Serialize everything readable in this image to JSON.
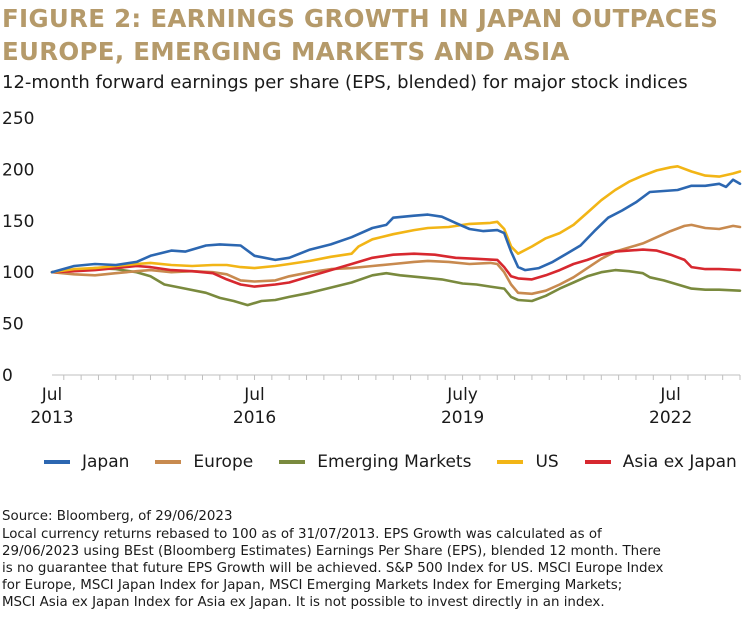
{
  "figure": {
    "title_line1": "FIGURE 2: EARNINGS GROWTH IN JAPAN OUTPACES",
    "title_line2": "EUROPE, EMERGING MARKETS AND ASIA",
    "subtitle": "12-month forward earnings per share (EPS, blended) for major stock indices",
    "source": "Source: Bloomberg, of 29/06/2023",
    "notes": [
      "Local currency returns rebased to 100 as of 31/07/2013. EPS Growth was calculated as of",
      "29/06/2023 using BEst (Bloomberg Estimates) Earnings Per Share (EPS), blended 12 month. There",
      "is no guarantee that future EPS Growth will be achieved. S&P 500 Index for US. MSCI Europe Index",
      "for Europe, MSCI Japan Index for Japan, MSCI Emerging Markets Index for Emerging Markets;",
      "MSCI Asia ex Japan Index for Asia ex Japan. It is not possible to invest directly in an index."
    ]
  },
  "chart_data": {
    "type": "line",
    "ylim": [
      0,
      250
    ],
    "yticks": [
      0,
      50,
      100,
      150,
      200,
      250
    ],
    "xlim": [
      2013.58,
      2023.5
    ],
    "xticks": [
      {
        "x": 2013.58,
        "line1": "Jul",
        "line2": "2013"
      },
      {
        "x": 2016.5,
        "line1": "Jul",
        "line2": "2016"
      },
      {
        "x": 2019.5,
        "line1": "July",
        "line2": "2019"
      },
      {
        "x": 2022.5,
        "line1": "Jul",
        "line2": "2022"
      }
    ],
    "grid": false,
    "legend_position": "bottom",
    "series": [
      {
        "name": "Japan",
        "color": "#2c67b1",
        "points": [
          [
            2013.58,
            100
          ],
          [
            2013.9,
            106
          ],
          [
            2014.2,
            108
          ],
          [
            2014.5,
            107
          ],
          [
            2014.8,
            110
          ],
          [
            2015.0,
            116
          ],
          [
            2015.3,
            121
          ],
          [
            2015.5,
            120
          ],
          [
            2015.8,
            126
          ],
          [
            2016.0,
            127
          ],
          [
            2016.3,
            126
          ],
          [
            2016.5,
            116
          ],
          [
            2016.8,
            112
          ],
          [
            2017.0,
            114
          ],
          [
            2017.3,
            122
          ],
          [
            2017.6,
            127
          ],
          [
            2017.9,
            134
          ],
          [
            2018.2,
            143
          ],
          [
            2018.4,
            146
          ],
          [
            2018.5,
            153
          ],
          [
            2018.8,
            155
          ],
          [
            2019.0,
            156
          ],
          [
            2019.2,
            154
          ],
          [
            2019.4,
            148
          ],
          [
            2019.6,
            142
          ],
          [
            2019.8,
            140
          ],
          [
            2020.0,
            141
          ],
          [
            2020.1,
            138
          ],
          [
            2020.2,
            120
          ],
          [
            2020.3,
            105
          ],
          [
            2020.4,
            102
          ],
          [
            2020.6,
            104
          ],
          [
            2020.8,
            110
          ],
          [
            2021.0,
            118
          ],
          [
            2021.2,
            126
          ],
          [
            2021.4,
            140
          ],
          [
            2021.6,
            153
          ],
          [
            2021.8,
            160
          ],
          [
            2022.0,
            168
          ],
          [
            2022.2,
            178
          ],
          [
            2022.4,
            179
          ],
          [
            2022.6,
            180
          ],
          [
            2022.8,
            184
          ],
          [
            2023.0,
            184
          ],
          [
            2023.2,
            186
          ],
          [
            2023.3,
            183
          ],
          [
            2023.4,
            190
          ],
          [
            2023.5,
            186
          ]
        ]
      },
      {
        "name": "Europe",
        "color": "#c88a4f",
        "points": [
          [
            2013.58,
            100
          ],
          [
            2013.9,
            98
          ],
          [
            2014.2,
            97
          ],
          [
            2014.5,
            99
          ],
          [
            2014.8,
            101
          ],
          [
            2015.0,
            102
          ],
          [
            2015.3,
            100
          ],
          [
            2015.6,
            101
          ],
          [
            2015.9,
            100
          ],
          [
            2016.1,
            98
          ],
          [
            2016.3,
            92
          ],
          [
            2016.5,
            91
          ],
          [
            2016.8,
            92
          ],
          [
            2017.0,
            96
          ],
          [
            2017.3,
            100
          ],
          [
            2017.6,
            103
          ],
          [
            2017.9,
            104
          ],
          [
            2018.2,
            106
          ],
          [
            2018.5,
            108
          ],
          [
            2018.8,
            110
          ],
          [
            2019.0,
            111
          ],
          [
            2019.3,
            110
          ],
          [
            2019.6,
            108
          ],
          [
            2019.9,
            109
          ],
          [
            2020.0,
            108
          ],
          [
            2020.1,
            100
          ],
          [
            2020.2,
            88
          ],
          [
            2020.3,
            80
          ],
          [
            2020.5,
            79
          ],
          [
            2020.7,
            82
          ],
          [
            2020.9,
            88
          ],
          [
            2021.1,
            95
          ],
          [
            2021.3,
            104
          ],
          [
            2021.5,
            113
          ],
          [
            2021.7,
            120
          ],
          [
            2021.9,
            124
          ],
          [
            2022.1,
            128
          ],
          [
            2022.3,
            134
          ],
          [
            2022.5,
            140
          ],
          [
            2022.7,
            145
          ],
          [
            2022.8,
            146
          ],
          [
            2023.0,
            143
          ],
          [
            2023.2,
            142
          ],
          [
            2023.4,
            145
          ],
          [
            2023.5,
            144
          ]
        ]
      },
      {
        "name": "Emerging Markets",
        "color": "#7a8a3e",
        "points": [
          [
            2013.58,
            100
          ],
          [
            2013.9,
            102
          ],
          [
            2014.2,
            104
          ],
          [
            2014.5,
            103
          ],
          [
            2014.8,
            100
          ],
          [
            2015.0,
            96
          ],
          [
            2015.2,
            88
          ],
          [
            2015.5,
            84
          ],
          [
            2015.8,
            80
          ],
          [
            2016.0,
            75
          ],
          [
            2016.2,
            72
          ],
          [
            2016.4,
            68
          ],
          [
            2016.6,
            72
          ],
          [
            2016.8,
            73
          ],
          [
            2017.0,
            76
          ],
          [
            2017.3,
            80
          ],
          [
            2017.6,
            85
          ],
          [
            2017.9,
            90
          ],
          [
            2018.2,
            97
          ],
          [
            2018.4,
            99
          ],
          [
            2018.6,
            97
          ],
          [
            2018.9,
            95
          ],
          [
            2019.2,
            93
          ],
          [
            2019.5,
            89
          ],
          [
            2019.7,
            88
          ],
          [
            2019.9,
            86
          ],
          [
            2020.1,
            84
          ],
          [
            2020.2,
            76
          ],
          [
            2020.3,
            73
          ],
          [
            2020.5,
            72
          ],
          [
            2020.7,
            77
          ],
          [
            2020.9,
            84
          ],
          [
            2021.1,
            90
          ],
          [
            2021.3,
            96
          ],
          [
            2021.5,
            100
          ],
          [
            2021.7,
            102
          ],
          [
            2021.9,
            101
          ],
          [
            2022.1,
            99
          ],
          [
            2022.2,
            95
          ],
          [
            2022.4,
            92
          ],
          [
            2022.6,
            88
          ],
          [
            2022.8,
            84
          ],
          [
            2023.0,
            83
          ],
          [
            2023.2,
            83
          ],
          [
            2023.5,
            82
          ]
        ]
      },
      {
        "name": "US",
        "color": "#f2b516",
        "points": [
          [
            2013.58,
            100
          ],
          [
            2013.9,
            103
          ],
          [
            2014.2,
            104
          ],
          [
            2014.5,
            106
          ],
          [
            2014.8,
            108
          ],
          [
            2015.0,
            109
          ],
          [
            2015.3,
            107
          ],
          [
            2015.6,
            106
          ],
          [
            2015.9,
            107
          ],
          [
            2016.1,
            107
          ],
          [
            2016.3,
            105
          ],
          [
            2016.5,
            104
          ],
          [
            2016.8,
            106
          ],
          [
            2017.0,
            108
          ],
          [
            2017.3,
            111
          ],
          [
            2017.6,
            115
          ],
          [
            2017.9,
            118
          ],
          [
            2018.0,
            125
          ],
          [
            2018.2,
            132
          ],
          [
            2018.5,
            137
          ],
          [
            2018.8,
            141
          ],
          [
            2019.0,
            143
          ],
          [
            2019.3,
            144
          ],
          [
            2019.6,
            147
          ],
          [
            2019.9,
            148
          ],
          [
            2020.0,
            149
          ],
          [
            2020.1,
            142
          ],
          [
            2020.2,
            125
          ],
          [
            2020.3,
            118
          ],
          [
            2020.5,
            125
          ],
          [
            2020.7,
            133
          ],
          [
            2020.9,
            138
          ],
          [
            2021.1,
            146
          ],
          [
            2021.3,
            158
          ],
          [
            2021.5,
            170
          ],
          [
            2021.7,
            180
          ],
          [
            2021.9,
            188
          ],
          [
            2022.1,
            194
          ],
          [
            2022.3,
            199
          ],
          [
            2022.5,
            202
          ],
          [
            2022.6,
            203
          ],
          [
            2022.8,
            198
          ],
          [
            2023.0,
            194
          ],
          [
            2023.2,
            193
          ],
          [
            2023.4,
            196
          ],
          [
            2023.5,
            198
          ]
        ]
      },
      {
        "name": "Asia ex Japan",
        "color": "#d7282f",
        "points": [
          [
            2013.58,
            100
          ],
          [
            2013.9,
            101
          ],
          [
            2014.2,
            102
          ],
          [
            2014.5,
            104
          ],
          [
            2014.8,
            106
          ],
          [
            2015.0,
            105
          ],
          [
            2015.3,
            102
          ],
          [
            2015.6,
            101
          ],
          [
            2015.9,
            99
          ],
          [
            2016.1,
            93
          ],
          [
            2016.3,
            88
          ],
          [
            2016.5,
            86
          ],
          [
            2016.8,
            88
          ],
          [
            2017.0,
            90
          ],
          [
            2017.3,
            96
          ],
          [
            2017.6,
            102
          ],
          [
            2017.9,
            108
          ],
          [
            2018.2,
            114
          ],
          [
            2018.5,
            117
          ],
          [
            2018.8,
            118
          ],
          [
            2019.1,
            117
          ],
          [
            2019.4,
            114
          ],
          [
            2019.7,
            113
          ],
          [
            2020.0,
            112
          ],
          [
            2020.1,
            105
          ],
          [
            2020.2,
            96
          ],
          [
            2020.3,
            94
          ],
          [
            2020.5,
            93
          ],
          [
            2020.7,
            97
          ],
          [
            2020.9,
            102
          ],
          [
            2021.1,
            108
          ],
          [
            2021.3,
            112
          ],
          [
            2021.5,
            117
          ],
          [
            2021.7,
            120
          ],
          [
            2021.9,
            121
          ],
          [
            2022.1,
            122
          ],
          [
            2022.3,
            121
          ],
          [
            2022.5,
            117
          ],
          [
            2022.7,
            112
          ],
          [
            2022.8,
            105
          ],
          [
            2023.0,
            103
          ],
          [
            2023.2,
            103
          ],
          [
            2023.5,
            102
          ]
        ]
      }
    ]
  }
}
